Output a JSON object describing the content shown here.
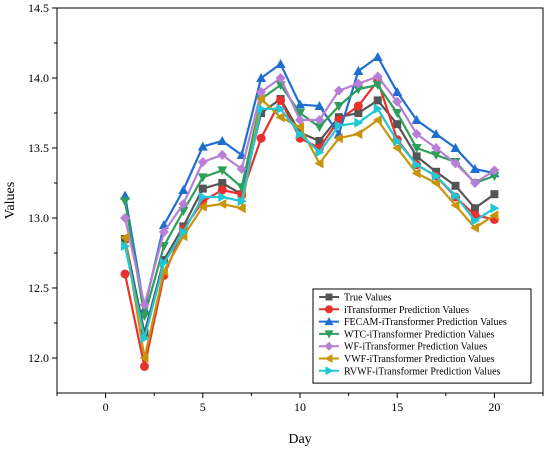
{
  "chart_data": {
    "type": "line",
    "title": "",
    "xlabel": "Day",
    "ylabel": "Values",
    "xlim": [
      -2.5,
      22.5
    ],
    "ylim": [
      11.75,
      14.5
    ],
    "xticks": [
      0,
      5,
      10,
      15,
      20
    ],
    "yticks": [
      12.0,
      12.5,
      13.0,
      13.5,
      14.0,
      14.5
    ],
    "x": [
      1,
      2,
      3,
      4,
      5,
      6,
      7,
      8,
      9,
      10,
      11,
      12,
      13,
      14,
      15,
      16,
      17,
      18,
      19,
      20
    ],
    "grid": false,
    "legend_position": "bottom-right",
    "series": [
      {
        "name": "True Values",
        "color": "#555555",
        "marker": "square",
        "values": [
          12.85,
          12.18,
          12.7,
          12.94,
          13.21,
          13.25,
          13.17,
          13.75,
          13.85,
          13.61,
          13.55,
          13.72,
          13.75,
          13.84,
          13.67,
          13.44,
          13.33,
          13.23,
          13.07,
          13.17
        ]
      },
      {
        "name": "iTransformer Prediction Values",
        "color": "#e8312c",
        "marker": "circle",
        "values": [
          12.6,
          11.94,
          12.59,
          12.92,
          13.12,
          13.2,
          13.17,
          13.57,
          13.84,
          13.57,
          13.5,
          13.7,
          13.8,
          13.98,
          13.56,
          13.38,
          13.3,
          13.15,
          13.02,
          12.99
        ]
      },
      {
        "name": "FECAM-iTransformer Prediction Values",
        "color": "#1f6fd1",
        "marker": "triangle-up",
        "values": [
          13.16,
          12.35,
          12.95,
          13.2,
          13.51,
          13.55,
          13.45,
          14.0,
          14.1,
          13.81,
          13.8,
          13.6,
          14.05,
          14.15,
          13.9,
          13.7,
          13.6,
          13.5,
          13.35,
          13.32
        ]
      },
      {
        "name": "WTC-iTransformer Prediction Values",
        "color": "#2ca05a",
        "marker": "triangle-down",
        "values": [
          13.12,
          12.3,
          12.8,
          13.05,
          13.29,
          13.34,
          13.22,
          13.85,
          13.95,
          13.75,
          13.65,
          13.8,
          13.92,
          13.95,
          13.75,
          13.5,
          13.45,
          13.4,
          13.25,
          13.3
        ]
      },
      {
        "name": "WF-iTransformer Prediction Values",
        "color": "#b87fd6",
        "marker": "diamond",
        "values": [
          13.0,
          12.38,
          12.9,
          13.1,
          13.4,
          13.45,
          13.35,
          13.9,
          14.0,
          13.7,
          13.7,
          13.91,
          13.96,
          14.01,
          13.83,
          13.6,
          13.5,
          13.39,
          13.25,
          13.34
        ]
      },
      {
        "name": "VWF-iTransformer Prediction Values",
        "color": "#c8950a",
        "marker": "triangle-left",
        "values": [
          12.86,
          12.0,
          12.62,
          12.87,
          13.08,
          13.1,
          13.07,
          13.85,
          13.72,
          13.65,
          13.39,
          13.57,
          13.6,
          13.7,
          13.5,
          13.32,
          13.25,
          13.09,
          12.93,
          13.02
        ]
      },
      {
        "name": "RVWF-iTransformer Prediction Values",
        "color": "#22c7d6",
        "marker": "triangle-right",
        "values": [
          12.8,
          12.14,
          12.68,
          12.9,
          13.15,
          13.15,
          13.12,
          13.78,
          13.78,
          13.6,
          13.47,
          13.66,
          13.68,
          13.78,
          13.55,
          13.38,
          13.3,
          13.16,
          12.98,
          13.07
        ]
      }
    ]
  }
}
